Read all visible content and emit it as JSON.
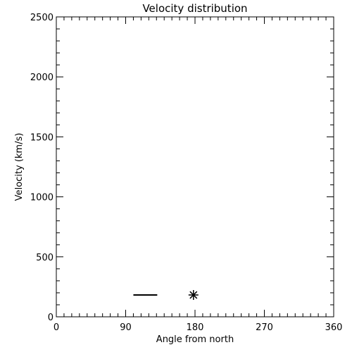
{
  "chart_data": {
    "type": "scatter",
    "title": "Velocity distribution",
    "x_label": "Angle from north",
    "y_label": "Velocity (km/s)",
    "xlim": [
      0,
      360
    ],
    "xticks": [
      0,
      90,
      180,
      270,
      360
    ],
    "x_minor_intervals": 9,
    "ylim": [
      0,
      2500
    ],
    "yticks": [
      0,
      500,
      1000,
      1500,
      2000,
      2500
    ],
    "y_minor_intervals": 5,
    "series": [
      {
        "mode": "line",
        "color": "#000000",
        "x": [
          100,
          131
        ],
        "values": [
          182,
          182
        ]
      },
      {
        "mode": "asterisk",
        "color": "#000000",
        "x": [
          178
        ],
        "values": [
          182
        ]
      }
    ]
  }
}
